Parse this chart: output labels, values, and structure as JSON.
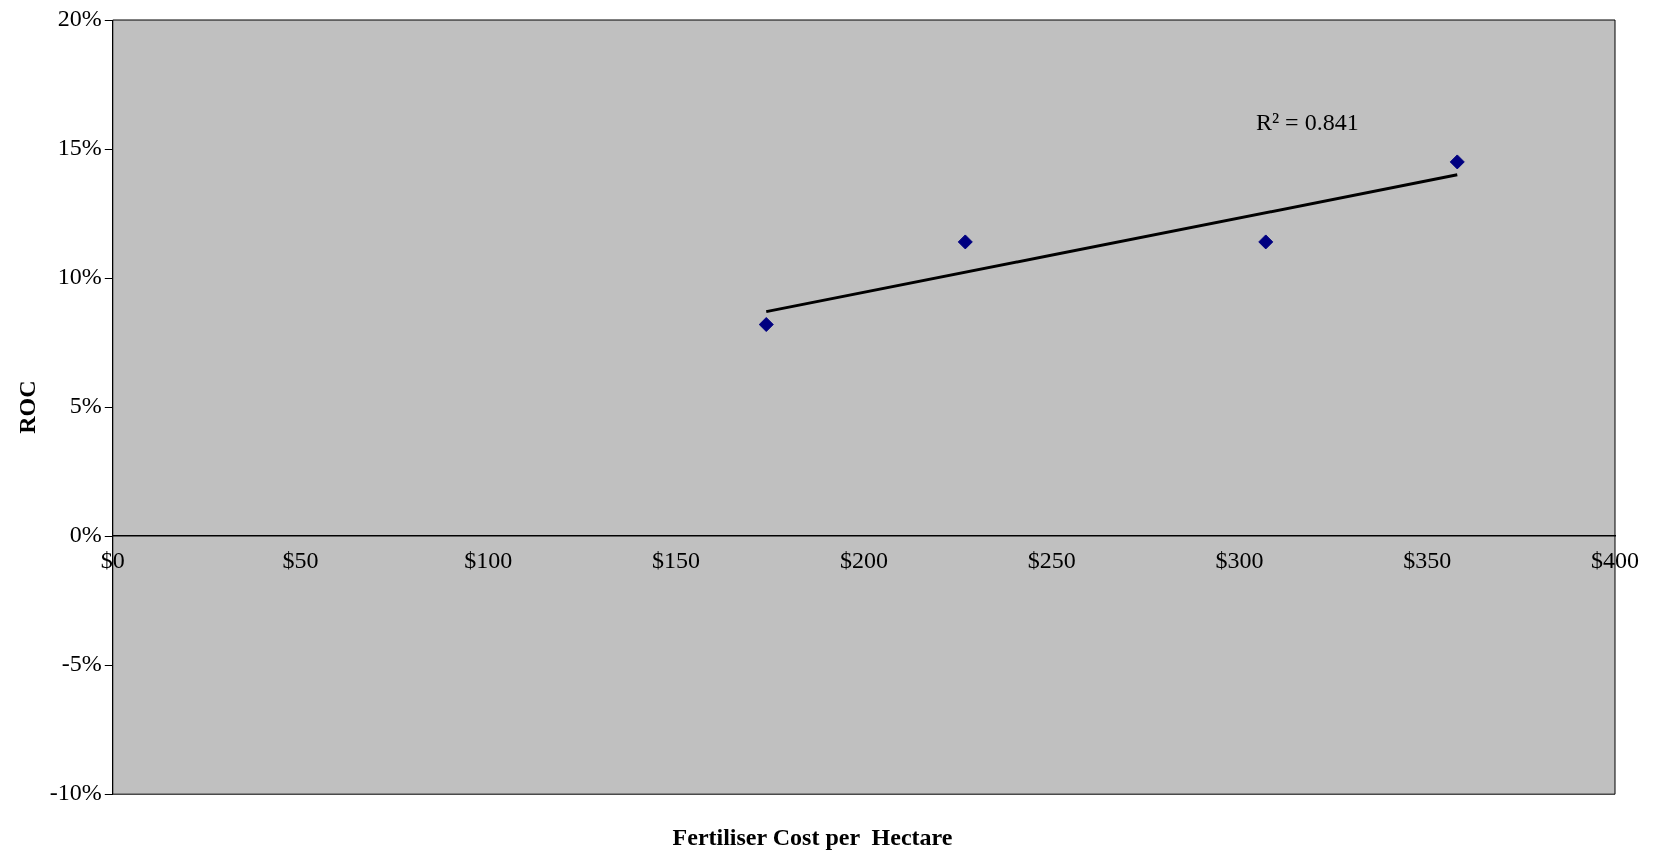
{
  "chart_data": {
    "type": "scatter",
    "xlabel": "Fertiliser Cost per  Hectare",
    "ylabel": "ROC",
    "x": [
      174,
      227,
      307,
      358
    ],
    "series": [
      {
        "color": "#000080",
        "values": [
          8.2,
          11.4,
          11.4,
          14.5
        ],
        "marker": "diamond"
      },
      {
        "type": "line",
        "color": "#000000",
        "x": [
          174,
          358
        ],
        "values": [
          8.7,
          14.0
        ],
        "marker": "none"
      }
    ],
    "annotations": [
      "R² = 0.841"
    ],
    "xlim": [
      0,
      400
    ],
    "xticks": [
      {
        "value": 0,
        "label": "$0"
      },
      {
        "value": 50,
        "label": "$50"
      },
      {
        "value": 100,
        "label": "$100"
      },
      {
        "value": 150,
        "label": "$150"
      },
      {
        "value": 200,
        "label": "$200"
      },
      {
        "value": 250,
        "label": "$250"
      },
      {
        "value": 300,
        "label": "$300"
      },
      {
        "value": 350,
        "label": "$350"
      },
      {
        "value": 400,
        "label": "$400"
      }
    ],
    "ylim": [
      -10,
      20
    ],
    "yticks": [
      {
        "value": -10,
        "label": "-10%"
      },
      {
        "value": -5,
        "label": "-5%"
      },
      {
        "value": 0,
        "label": "0%"
      },
      {
        "value": 5,
        "label": "5%"
      },
      {
        "value": 10,
        "label": "10%"
      },
      {
        "value": 15,
        "label": "15%"
      },
      {
        "value": 20,
        "label": "20%"
      }
    ],
    "grid": false,
    "legend": false
  }
}
